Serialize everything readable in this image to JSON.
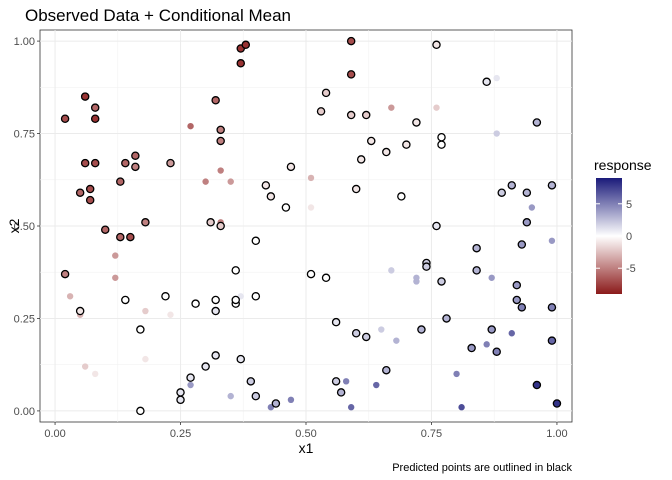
{
  "chart_data": {
    "type": "scatter",
    "title": "Observed Data + Conditional Mean",
    "xlabel": "x1",
    "ylabel": "x2",
    "caption": "Predicted points are outlined in black",
    "xlim": [
      -0.03,
      1.03
    ],
    "ylim": [
      -0.03,
      1.03
    ],
    "x_ticks": [
      0.0,
      0.25,
      0.5,
      0.75,
      1.0
    ],
    "x_tick_labels": [
      "0.00",
      "0.25",
      "0.50",
      "0.75",
      "1.00"
    ],
    "y_ticks": [
      0.0,
      0.25,
      0.5,
      0.75,
      1.0
    ],
    "y_tick_labels": [
      "0.00",
      "0.25",
      "0.50",
      "0.75",
      "1.00"
    ],
    "grid": true,
    "legend": {
      "title": "response",
      "position": "right",
      "range": [
        -9,
        9
      ],
      "ticks": [
        5,
        0,
        -5
      ],
      "tick_labels": [
        "5",
        "0",
        "-5"
      ],
      "colors": {
        "low": "#8b1a1a",
        "mid": "#ffffff",
        "high": "#1a1a7a"
      }
    },
    "series": [
      {
        "name": "observed",
        "points": [
          [
            0.03,
            0.31,
            -3
          ],
          [
            0.05,
            0.26,
            -3
          ],
          [
            0.06,
            0.12,
            -2
          ],
          [
            0.08,
            0.1,
            -1
          ],
          [
            0.12,
            0.36,
            -4
          ],
          [
            0.12,
            0.42,
            -4
          ],
          [
            0.18,
            0.27,
            -2
          ],
          [
            0.18,
            0.14,
            -1
          ],
          [
            0.23,
            0.26,
            -1
          ],
          [
            0.27,
            0.77,
            -6
          ],
          [
            0.3,
            0.62,
            -5
          ],
          [
            0.33,
            0.65,
            -5
          ],
          [
            0.33,
            0.51,
            -5
          ],
          [
            0.35,
            0.62,
            -4
          ],
          [
            0.51,
            0.63,
            -3
          ],
          [
            0.51,
            0.55,
            -1
          ],
          [
            0.67,
            0.82,
            -4
          ],
          [
            0.76,
            0.82,
            -2
          ],
          [
            0.37,
            0.31,
            1
          ],
          [
            0.65,
            0.22,
            2
          ],
          [
            0.67,
            0.38,
            2
          ],
          [
            0.72,
            0.35,
            3
          ],
          [
            0.68,
            0.19,
            3
          ],
          [
            0.72,
            0.36,
            3
          ],
          [
            0.88,
            0.9,
            1
          ],
          [
            0.88,
            0.75,
            2
          ],
          [
            0.95,
            0.55,
            4
          ],
          [
            0.99,
            0.46,
            4
          ],
          [
            0.87,
            0.36,
            4
          ],
          [
            0.86,
            0.18,
            5
          ],
          [
            0.91,
            0.21,
            6
          ],
          [
            0.8,
            0.1,
            5
          ],
          [
            0.81,
            0.01,
            7
          ],
          [
            0.64,
            0.07,
            6
          ],
          [
            0.58,
            0.08,
            5
          ],
          [
            0.59,
            0.01,
            6
          ],
          [
            0.47,
            0.03,
            5
          ],
          [
            0.43,
            0.01,
            5
          ],
          [
            0.35,
            0.04,
            3
          ],
          [
            0.27,
            0.07,
            4
          ]
        ]
      },
      {
        "name": "predicted",
        "points": [
          [
            0.02,
            0.79,
            -7
          ],
          [
            0.06,
            0.85,
            -8
          ],
          [
            0.08,
            0.82,
            -6
          ],
          [
            0.08,
            0.79,
            -8
          ],
          [
            0.06,
            0.67,
            -7
          ],
          [
            0.08,
            0.67,
            -7
          ],
          [
            0.07,
            0.6,
            -7
          ],
          [
            0.07,
            0.57,
            -7
          ],
          [
            0.05,
            0.59,
            -6
          ],
          [
            0.1,
            0.49,
            -6
          ],
          [
            0.13,
            0.47,
            -6
          ],
          [
            0.15,
            0.47,
            -7
          ],
          [
            0.13,
            0.62,
            -6
          ],
          [
            0.14,
            0.67,
            -6
          ],
          [
            0.16,
            0.69,
            -6
          ],
          [
            0.16,
            0.66,
            -5
          ],
          [
            0.18,
            0.51,
            -5
          ],
          [
            0.02,
            0.37,
            -5
          ],
          [
            0.05,
            0.27,
            -1
          ],
          [
            0.14,
            0.3,
            0
          ],
          [
            0.17,
            0.22,
            0
          ],
          [
            0.17,
            0.0,
            0
          ],
          [
            0.23,
            0.67,
            -4
          ],
          [
            0.32,
            0.84,
            -6
          ],
          [
            0.33,
            0.76,
            -5
          ],
          [
            0.33,
            0.73,
            -5
          ],
          [
            0.37,
            0.98,
            -8
          ],
          [
            0.38,
            0.99,
            -8
          ],
          [
            0.37,
            0.94,
            -8
          ],
          [
            0.31,
            0.51,
            -2
          ],
          [
            0.33,
            0.5,
            -2
          ],
          [
            0.28,
            0.29,
            0
          ],
          [
            0.22,
            0.31,
            0
          ],
          [
            0.25,
            0.05,
            1
          ],
          [
            0.25,
            0.03,
            1
          ],
          [
            0.27,
            0.09,
            1
          ],
          [
            0.3,
            0.12,
            1
          ],
          [
            0.32,
            0.15,
            1
          ],
          [
            0.32,
            0.27,
            1
          ],
          [
            0.32,
            0.3,
            0
          ],
          [
            0.36,
            0.29,
            0
          ],
          [
            0.36,
            0.3,
            0
          ],
          [
            0.36,
            0.38,
            0
          ],
          [
            0.37,
            0.14,
            1
          ],
          [
            0.39,
            0.08,
            2
          ],
          [
            0.4,
            0.04,
            2
          ],
          [
            0.4,
            0.31,
            0
          ],
          [
            0.4,
            0.46,
            0
          ],
          [
            0.42,
            0.61,
            -1
          ],
          [
            0.43,
            0.58,
            -1
          ],
          [
            0.44,
            0.02,
            3
          ],
          [
            0.46,
            0.55,
            0
          ],
          [
            0.47,
            0.66,
            -1
          ],
          [
            0.51,
            0.37,
            0
          ],
          [
            0.53,
            0.81,
            -2
          ],
          [
            0.54,
            0.86,
            -2
          ],
          [
            0.54,
            0.36,
            0
          ],
          [
            0.56,
            0.24,
            1
          ],
          [
            0.56,
            0.08,
            2
          ],
          [
            0.57,
            0.05,
            3
          ],
          [
            0.59,
            1.0,
            -7
          ],
          [
            0.59,
            0.91,
            -7
          ],
          [
            0.59,
            0.8,
            -2
          ],
          [
            0.6,
            0.6,
            -1
          ],
          [
            0.61,
            0.68,
            -1
          ],
          [
            0.62,
            0.8,
            -2
          ],
          [
            0.63,
            0.73,
            -1
          ],
          [
            0.6,
            0.21,
            2
          ],
          [
            0.62,
            0.2,
            2
          ],
          [
            0.66,
            0.11,
            3
          ],
          [
            0.66,
            0.7,
            -1
          ],
          [
            0.69,
            0.58,
            0
          ],
          [
            0.7,
            0.72,
            -1
          ],
          [
            0.72,
            0.78,
            -1
          ],
          [
            0.73,
            0.22,
            3
          ],
          [
            0.74,
            0.4,
            2
          ],
          [
            0.74,
            0.39,
            2
          ],
          [
            0.76,
            0.99,
            -1
          ],
          [
            0.76,
            0.5,
            1
          ],
          [
            0.77,
            0.72,
            0
          ],
          [
            0.77,
            0.74,
            0
          ],
          [
            0.77,
            0.35,
            2
          ],
          [
            0.78,
            0.25,
            3
          ],
          [
            0.83,
            0.17,
            4
          ],
          [
            0.84,
            0.44,
            3
          ],
          [
            0.84,
            0.38,
            3
          ],
          [
            0.86,
            0.89,
            1
          ],
          [
            0.87,
            0.22,
            4
          ],
          [
            0.88,
            0.16,
            5
          ],
          [
            0.89,
            0.59,
            2
          ],
          [
            0.91,
            0.61,
            3
          ],
          [
            0.92,
            0.34,
            4
          ],
          [
            0.92,
            0.3,
            4
          ],
          [
            0.93,
            0.28,
            5
          ],
          [
            0.93,
            0.45,
            4
          ],
          [
            0.94,
            0.59,
            3
          ],
          [
            0.94,
            0.51,
            4
          ],
          [
            0.96,
            0.78,
            3
          ],
          [
            0.96,
            0.07,
            8
          ],
          [
            0.99,
            0.61,
            3
          ],
          [
            0.99,
            0.28,
            5
          ],
          [
            0.99,
            0.19,
            6
          ],
          [
            1.0,
            0.02,
            8
          ]
        ]
      }
    ]
  }
}
